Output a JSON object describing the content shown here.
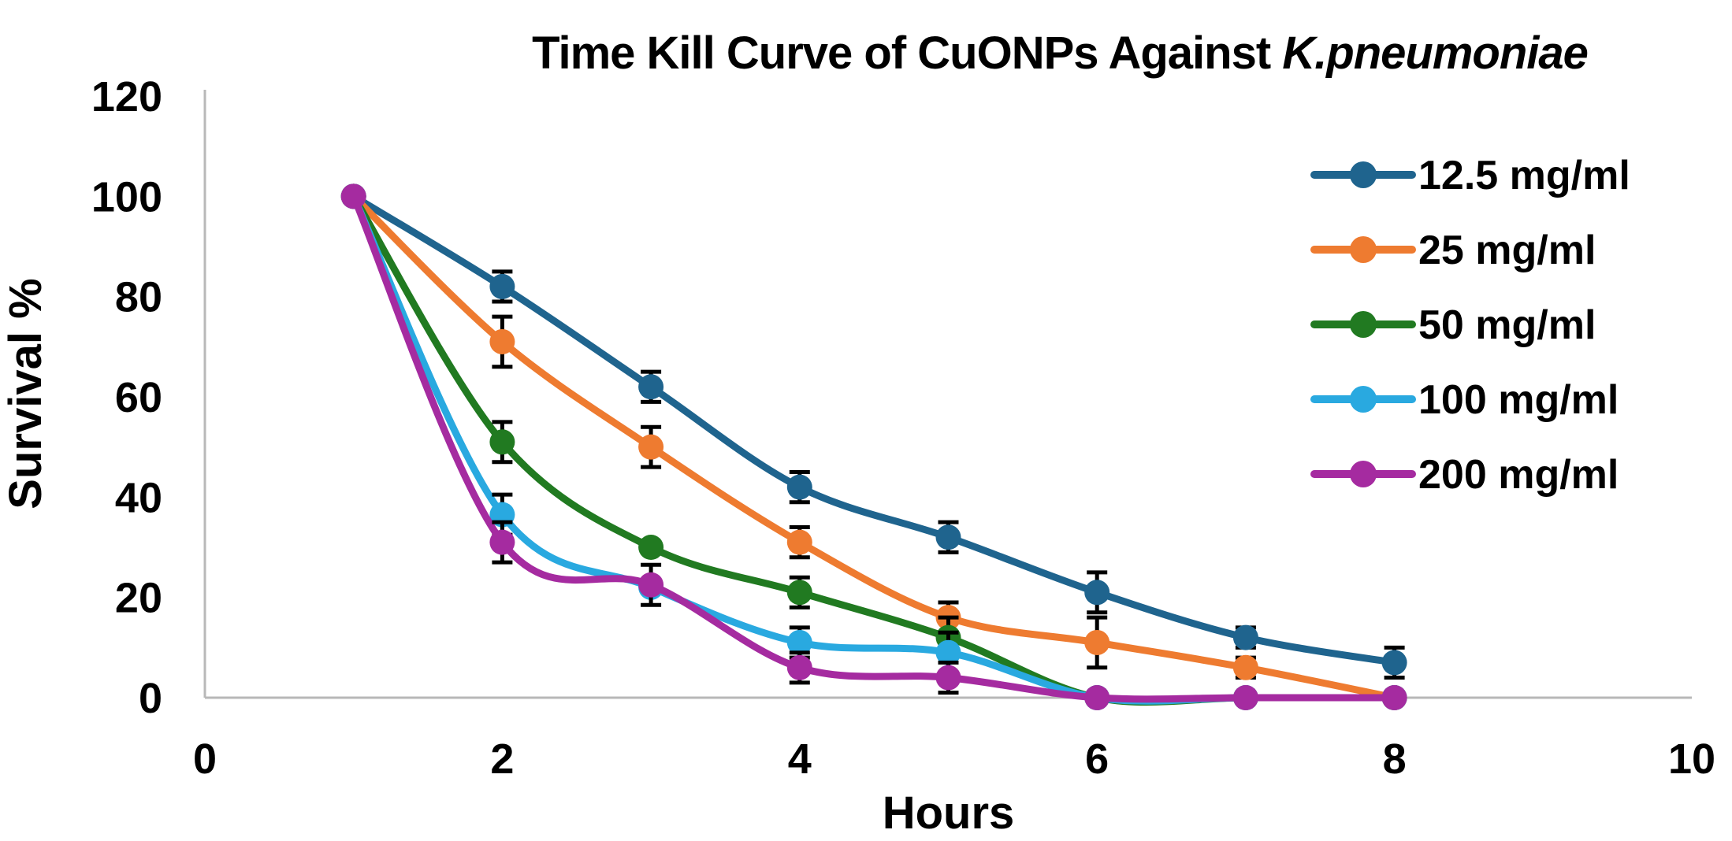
{
  "title": {
    "main": "Time Kill Curve of CuONPs Against ",
    "species": "K.pneumoniae"
  },
  "chart_data": {
    "type": "line",
    "title": "Time Kill Curve of CuONPs Against K.pneumoniae",
    "xlabel": "Hours",
    "ylabel": "Survival %",
    "xlim": [
      0,
      10
    ],
    "ylim": [
      0,
      120
    ],
    "x_ticks": [
      0,
      2,
      4,
      6,
      8,
      10
    ],
    "y_ticks": [
      0,
      20,
      40,
      60,
      80,
      100,
      120
    ],
    "grid": false,
    "legend_position": "upper right",
    "line_style": "smooth",
    "x": [
      1,
      2,
      3,
      4,
      5,
      6,
      7,
      8
    ],
    "series": [
      {
        "name": "12.5 mg/ml",
        "color": "#1F648E",
        "values": [
          100,
          82,
          62,
          42,
          32,
          21,
          12,
          7
        ],
        "errors": [
          0,
          3,
          3,
          3,
          3,
          4,
          2,
          3
        ]
      },
      {
        "name": "25 mg/ml",
        "color": "#EE7B30",
        "values": [
          100,
          71,
          50,
          31,
          16,
          11,
          6,
          0
        ],
        "errors": [
          0,
          5,
          4,
          3,
          3,
          5,
          2,
          0
        ]
      },
      {
        "name": "50 mg/ml",
        "color": "#217A21",
        "values": [
          100,
          51,
          30,
          21,
          12,
          0,
          0,
          0
        ],
        "errors": [
          0,
          4,
          0,
          3,
          4,
          0,
          0,
          0
        ]
      },
      {
        "name": "100 mg/ml",
        "color": "#29A9E0",
        "values": [
          100,
          36.5,
          22,
          11,
          9,
          0,
          0,
          0
        ],
        "errors": [
          0,
          4,
          0,
          3,
          4,
          0,
          0,
          0
        ]
      },
      {
        "name": "200 mg/ml",
        "color": "#A52BA0",
        "values": [
          100,
          31,
          22.5,
          6,
          4,
          0,
          0,
          0
        ],
        "errors": [
          0,
          4,
          4,
          3,
          3,
          0,
          0,
          0
        ]
      }
    ]
  },
  "style": {
    "axis_color": "#B8B8B8",
    "error_bar_color": "#000000",
    "text_color": "#000000"
  }
}
